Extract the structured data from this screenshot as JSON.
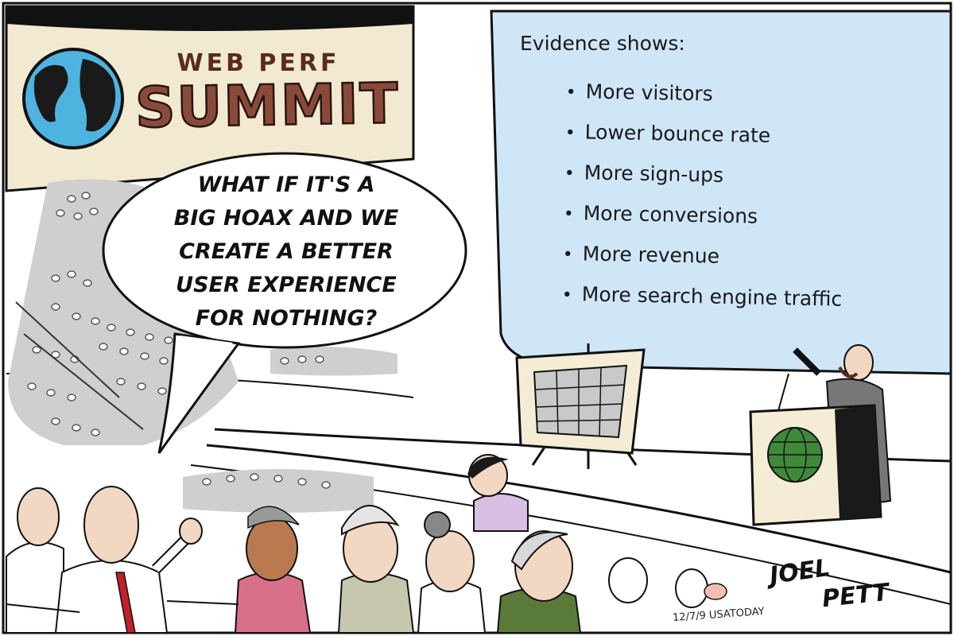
{
  "banner": {
    "line1": "WEB PERF",
    "line2": "SUMMIT"
  },
  "speech_bubble": {
    "lines": [
      "WHAT IF IT'S A",
      "BIG HOAX AND WE",
      "CREATE A BETTER",
      "USER EXPERIENCE",
      "FOR NOTHING?"
    ]
  },
  "slide": {
    "heading": "Evidence shows:",
    "bullets": [
      "More visitors",
      "Lower bounce rate",
      "More sign-ups",
      "More conversions",
      "More revenue",
      "More search engine traffic"
    ]
  },
  "signature": {
    "first": "JOEL",
    "last": "PETT",
    "dateline": "12/7/9 USATODAY"
  },
  "colors": {
    "screen": "#cfe6f7",
    "banner": "#f1ead0",
    "banner_text": "#8a4a3a",
    "globe_ocean": "#4fb3e0",
    "globe_land": "#1a1a1a",
    "podium_globe": "#3f8a3a",
    "audience_gray": "#cfcfcf"
  }
}
